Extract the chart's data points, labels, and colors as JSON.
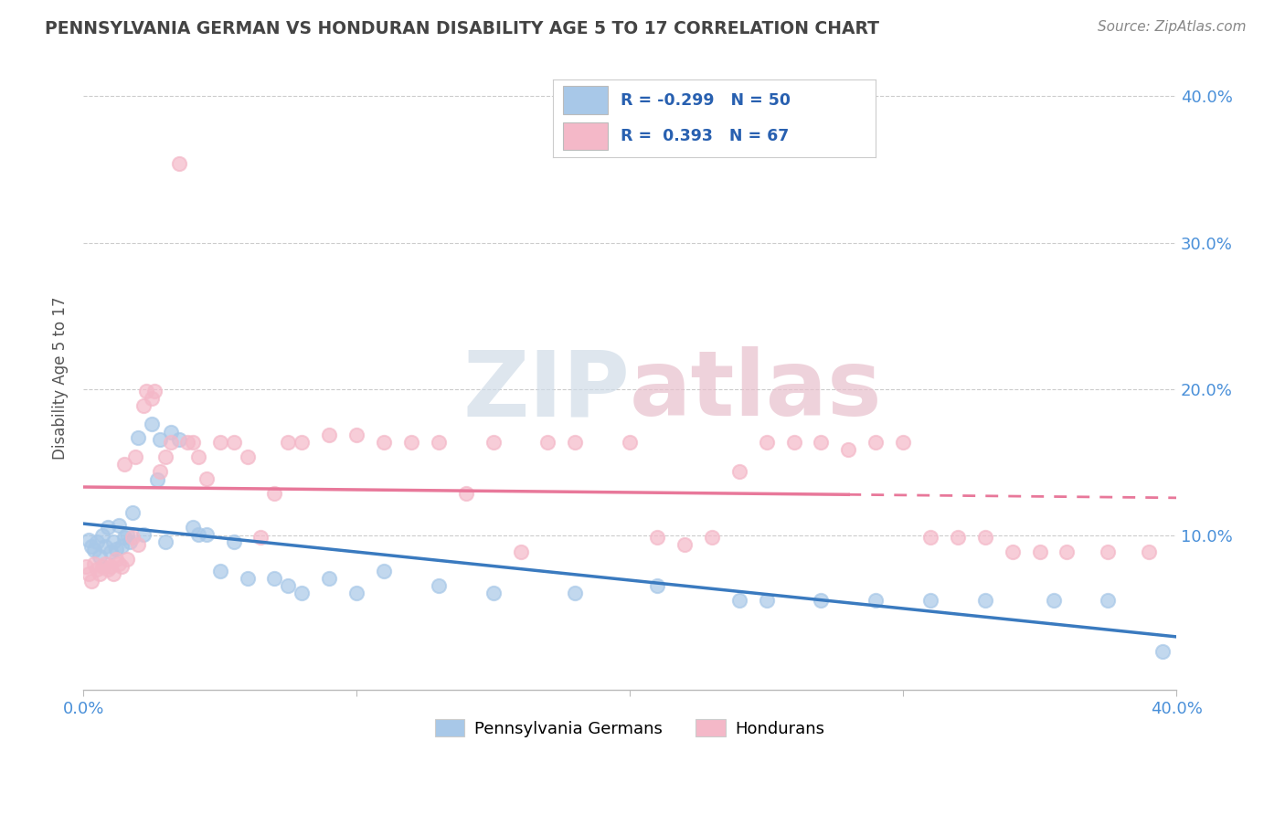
{
  "title": "PENNSYLVANIA GERMAN VS HONDURAN DISABILITY AGE 5 TO 17 CORRELATION CHART",
  "source": "Source: ZipAtlas.com",
  "ylabel": "Disability Age 5 to 17",
  "xlim": [
    0.0,
    0.4
  ],
  "ylim": [
    -0.005,
    0.42
  ],
  "blue_color": "#a8c8e8",
  "pink_color": "#f4b8c8",
  "blue_line_color": "#3a7abf",
  "pink_line_color": "#e8789a",
  "watermark_color": "#d0dce8",
  "watermark_pink": "#e8c0cc",
  "pa_german_x": [
    0.002,
    0.003,
    0.004,
    0.005,
    0.006,
    0.007,
    0.008,
    0.009,
    0.01,
    0.011,
    0.012,
    0.013,
    0.014,
    0.015,
    0.016,
    0.017,
    0.018,
    0.02,
    0.022,
    0.025,
    0.027,
    0.028,
    0.03,
    0.032,
    0.035,
    0.04,
    0.042,
    0.045,
    0.05,
    0.055,
    0.06,
    0.07,
    0.075,
    0.08,
    0.09,
    0.1,
    0.11,
    0.13,
    0.15,
    0.18,
    0.21,
    0.24,
    0.25,
    0.27,
    0.29,
    0.31,
    0.33,
    0.355,
    0.375,
    0.395
  ],
  "pa_german_y": [
    0.097,
    0.093,
    0.09,
    0.096,
    0.086,
    0.1,
    0.093,
    0.106,
    0.089,
    0.096,
    0.091,
    0.107,
    0.093,
    0.099,
    0.101,
    0.096,
    0.116,
    0.167,
    0.101,
    0.176,
    0.138,
    0.166,
    0.096,
    0.171,
    0.166,
    0.106,
    0.101,
    0.101,
    0.076,
    0.096,
    0.071,
    0.071,
    0.066,
    0.061,
    0.071,
    0.061,
    0.076,
    0.066,
    0.061,
    0.061,
    0.066,
    0.056,
    0.056,
    0.056,
    0.056,
    0.056,
    0.056,
    0.056,
    0.056,
    0.021
  ],
  "honduran_x": [
    0.001,
    0.002,
    0.003,
    0.004,
    0.005,
    0.006,
    0.007,
    0.008,
    0.009,
    0.01,
    0.011,
    0.012,
    0.013,
    0.014,
    0.015,
    0.016,
    0.018,
    0.019,
    0.02,
    0.022,
    0.023,
    0.025,
    0.026,
    0.028,
    0.03,
    0.032,
    0.035,
    0.038,
    0.04,
    0.042,
    0.045,
    0.05,
    0.055,
    0.06,
    0.065,
    0.07,
    0.075,
    0.08,
    0.09,
    0.1,
    0.11,
    0.12,
    0.13,
    0.14,
    0.15,
    0.16,
    0.17,
    0.18,
    0.2,
    0.21,
    0.22,
    0.23,
    0.24,
    0.25,
    0.26,
    0.27,
    0.28,
    0.29,
    0.3,
    0.31,
    0.32,
    0.33,
    0.34,
    0.35,
    0.36,
    0.375,
    0.39
  ],
  "honduran_y": [
    0.079,
    0.074,
    0.069,
    0.081,
    0.077,
    0.074,
    0.079,
    0.081,
    0.077,
    0.079,
    0.074,
    0.084,
    0.081,
    0.079,
    0.149,
    0.084,
    0.099,
    0.154,
    0.094,
    0.189,
    0.199,
    0.194,
    0.199,
    0.144,
    0.154,
    0.164,
    0.354,
    0.164,
    0.164,
    0.154,
    0.139,
    0.164,
    0.164,
    0.154,
    0.099,
    0.129,
    0.164,
    0.164,
    0.169,
    0.169,
    0.164,
    0.164,
    0.164,
    0.129,
    0.164,
    0.089,
    0.164,
    0.164,
    0.164,
    0.099,
    0.094,
    0.099,
    0.144,
    0.164,
    0.164,
    0.164,
    0.159,
    0.164,
    0.164,
    0.099,
    0.099,
    0.099,
    0.089,
    0.089,
    0.089,
    0.089,
    0.089
  ]
}
